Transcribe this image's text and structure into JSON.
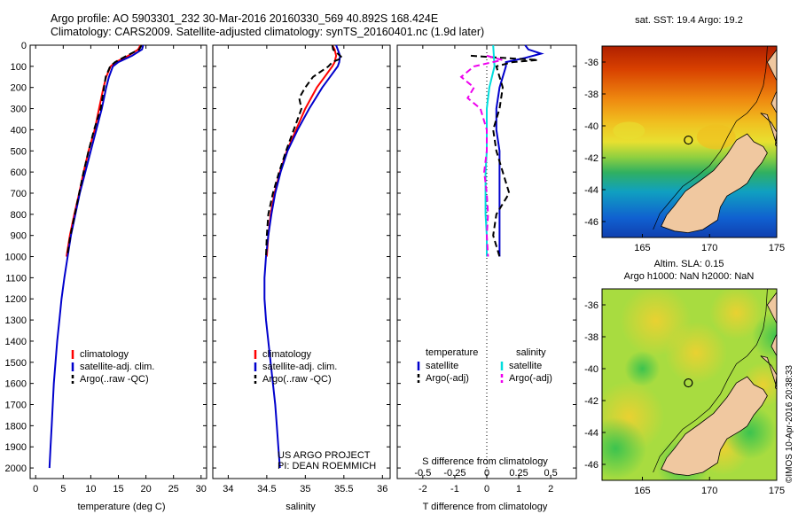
{
  "header": {
    "title_line1": "Argo profile: AO 5903301_232 30-Mar-2016 20160330_569 40.892S 168.424E",
    "title_line2": "Climatology: CARS2009. Satellite-adjusted climatology: synTS_20160401.nc (1.9d later)"
  },
  "colors": {
    "climatology": "#ff0000",
    "satellite": "#0000cc",
    "argo": "#000000",
    "sat_salinity": "#00dddd",
    "argo_salinity": "#ee00ee",
    "land": "#f0c8a0"
  },
  "credit": {
    "project_line1": "US ARGO PROJECT",
    "project_line2": "PI: DEAN ROEMMICH",
    "imos": "©IMOS 10-Apr-2016 20:38:33"
  },
  "maps": {
    "sst_title": "sat. SST: 19.4 Argo: 19.2",
    "sla_title1": "Altim. SLA: 0.15",
    "sla_title2": "Argo h1000: NaN h2000: NaN",
    "x_ticks": [
      "165",
      "170",
      "175"
    ],
    "y_ticks": [
      "-36",
      "-38",
      "-40",
      "-42",
      "-44",
      "-46"
    ],
    "lon_range": [
      162,
      175
    ],
    "lat_range": [
      -47,
      -35
    ],
    "float_position": {
      "lon": 168.424,
      "lat": -40.892
    }
  },
  "chart_data": [
    {
      "type": "line",
      "id": "temperature",
      "xlabel": "temperature (deg C)",
      "ylabel": "",
      "xlim": [
        -1,
        31
      ],
      "ylim": [
        2050,
        0
      ],
      "x_ticks": [
        0,
        5,
        10,
        15,
        20,
        25,
        30
      ],
      "y_ticks": [
        0,
        100,
        200,
        300,
        400,
        500,
        600,
        700,
        800,
        900,
        1000,
        1100,
        1200,
        1300,
        1400,
        1500,
        1600,
        1700,
        1800,
        1900,
        2000
      ],
      "legend": [
        "climatology",
        "satellite-adj. clim.",
        "Argo(..raw -QC)"
      ],
      "legend_position": "lower-center",
      "series": [
        {
          "name": "climatology",
          "color": "#ff0000",
          "dash": "solid",
          "depth": [
            0,
            20,
            50,
            80,
            100,
            150,
            200,
            300,
            400,
            500,
            600,
            700,
            800,
            900,
            1000
          ],
          "values": [
            19.0,
            18.6,
            16.8,
            14.5,
            13.6,
            12.8,
            12.3,
            11.5,
            10.7,
            9.6,
            8.7,
            7.9,
            7.0,
            6.2,
            5.6
          ]
        },
        {
          "name": "satellite-adj. clim.",
          "color": "#0000cc",
          "dash": "solid",
          "depth": [
            0,
            20,
            50,
            80,
            100,
            150,
            200,
            300,
            400,
            500,
            600,
            700,
            800,
            900,
            1000,
            1100,
            1200,
            1300,
            1400,
            1500,
            1600,
            1700,
            1800,
            1900,
            2000
          ],
          "values": [
            19.5,
            19.3,
            17.5,
            15.0,
            14.0,
            13.3,
            12.8,
            12.0,
            11.0,
            10.0,
            9.0,
            8.0,
            7.2,
            6.4,
            5.8,
            5.2,
            4.7,
            4.3,
            3.9,
            3.6,
            3.3,
            3.1,
            2.9,
            2.7,
            2.5
          ]
        },
        {
          "name": "Argo(..raw -QC)",
          "color": "#000000",
          "dash": "dashed",
          "depth": [
            0,
            20,
            50,
            80,
            100,
            150,
            200,
            300,
            400,
            500,
            600,
            700,
            800,
            900,
            1000
          ],
          "values": [
            19.2,
            18.8,
            16.5,
            14.4,
            13.5,
            12.7,
            12.4,
            11.8,
            10.6,
            9.6,
            8.7,
            7.9,
            7.1,
            6.3,
            5.7
          ]
        }
      ]
    },
    {
      "type": "line",
      "id": "salinity",
      "xlabel": "salinity",
      "ylabel": "",
      "xlim": [
        33.8,
        36.1
      ],
      "ylim": [
        2050,
        0
      ],
      "x_ticks": [
        34,
        34.5,
        35,
        35.5,
        36
      ],
      "legend": [
        "climatology",
        "satellite-adj. clim.",
        "Argo(..raw -QC)"
      ],
      "legend_position": "lower-center",
      "series": [
        {
          "name": "climatology",
          "color": "#ff0000",
          "dash": "solid",
          "depth": [
            0,
            20,
            50,
            80,
            100,
            150,
            200,
            300,
            400,
            500,
            600,
            700,
            800,
            900,
            1000
          ],
          "values": [
            35.35,
            35.38,
            35.4,
            35.38,
            35.35,
            35.25,
            35.15,
            35.0,
            34.88,
            34.76,
            34.67,
            34.6,
            34.55,
            34.52,
            34.5
          ]
        },
        {
          "name": "satellite-adj. clim.",
          "color": "#0000cc",
          "dash": "solid",
          "depth": [
            0,
            20,
            50,
            80,
            100,
            150,
            200,
            300,
            400,
            500,
            600,
            700,
            800,
            900,
            1000,
            1100,
            1200,
            1300,
            1400,
            1500,
            1600,
            1700,
            1800,
            1900,
            2000
          ],
          "values": [
            35.4,
            35.42,
            35.45,
            35.44,
            35.42,
            35.32,
            35.22,
            35.05,
            34.9,
            34.77,
            34.68,
            34.61,
            34.56,
            34.52,
            34.49,
            34.47,
            34.47,
            34.49,
            34.52,
            34.55,
            34.58,
            34.61,
            34.63,
            34.65,
            34.67
          ]
        },
        {
          "name": "Argo(..raw -QC)",
          "color": "#000000",
          "dash": "dashed",
          "depth": [
            0,
            20,
            40,
            60,
            80,
            100,
            150,
            200,
            250,
            300,
            350,
            400,
            500,
            600,
            700,
            800,
            900,
            1000
          ],
          "values": [
            35.35,
            35.36,
            35.42,
            35.48,
            35.35,
            35.3,
            35.1,
            35.0,
            34.92,
            34.95,
            34.9,
            34.85,
            34.75,
            34.66,
            34.58,
            34.52,
            34.5,
            34.49
          ]
        }
      ]
    },
    {
      "type": "line",
      "id": "differences",
      "xlabel": "T difference from climatology",
      "top_axis_label": "S difference from climatology",
      "ylabel": "",
      "xlim": [
        -2.8,
        2.8
      ],
      "ylim": [
        2050,
        0
      ],
      "x_ticks": [
        -2,
        -1,
        0,
        1,
        2
      ],
      "top_ticks": [
        "-0.5",
        "-0.25",
        "0",
        "0.25",
        "0.5"
      ],
      "legend_temperature_title": "temperature",
      "legend_salinity_title": "salinity",
      "legend": [
        "satellite",
        "Argo(-adj)",
        "satellite",
        "Argo(-adj)"
      ],
      "legend_position": "lower-center",
      "series": [
        {
          "name": "satellite",
          "group": "temperature",
          "color": "#0000cc",
          "dash": "solid",
          "depth": [
            0,
            20,
            40,
            60,
            80,
            100,
            150,
            200,
            300,
            400,
            500,
            600,
            700,
            800,
            900,
            1000
          ],
          "values": [
            1.2,
            1.3,
            1.7,
            1.2,
            0.6,
            0.6,
            0.5,
            0.4,
            0.3,
            0.3,
            0.4,
            0.4,
            0.4,
            0.4,
            0.4,
            0.4
          ]
        },
        {
          "name": "Argo(-adj)",
          "group": "temperature",
          "color": "#000000",
          "dash": "dashed",
          "depth": [
            50,
            60,
            70,
            80,
            100,
            150,
            200,
            300,
            400,
            500,
            600,
            700,
            800,
            900,
            1000
          ],
          "values": [
            -0.5,
            0.5,
            1.6,
            0.8,
            0.3,
            0.4,
            0.5,
            0.4,
            0.2,
            0.3,
            0.5,
            0.7,
            0.3,
            0.2,
            0.4
          ]
        },
        {
          "name": "satellite",
          "group": "salinity",
          "color": "#00dddd",
          "dash": "solid",
          "depth": [
            0,
            100,
            200,
            300,
            400,
            500,
            600,
            700,
            800,
            900,
            1000
          ],
          "values": [
            0.05,
            0.06,
            0.02,
            0.0,
            0.0,
            0.0,
            -0.01,
            -0.01,
            -0.01,
            0.0,
            0.0
          ]
        },
        {
          "name": "Argo(-adj)",
          "group": "salinity",
          "color": "#ee00ee",
          "dash": "dashed",
          "depth": [
            50,
            70,
            100,
            150,
            200,
            250,
            300,
            400,
            500,
            600,
            700,
            800,
            900,
            1000
          ],
          "values": [
            0.0,
            0.12,
            -0.1,
            -0.2,
            -0.1,
            -0.15,
            -0.05,
            0.0,
            0.0,
            -0.02,
            0.0,
            0.01,
            0.0,
            0.01
          ]
        }
      ]
    }
  ]
}
